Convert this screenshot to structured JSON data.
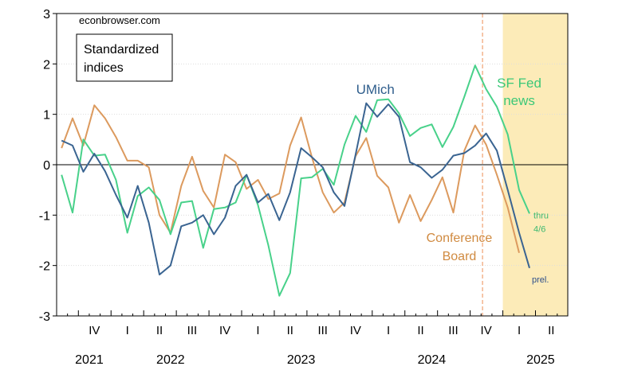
{
  "chart_data": {
    "type": "line",
    "watermark": "econbrowser.com",
    "title_box": [
      "Standardized",
      "indices"
    ],
    "ylim": [
      -3,
      3
    ],
    "y_ticks": [
      3,
      2,
      1,
      0,
      -1,
      -2,
      -3
    ],
    "x_range": [
      "2021-08",
      "2025-06"
    ],
    "quarter_ticks": [
      {
        "label": "IV",
        "x": "2021-11-15"
      },
      {
        "label": "I",
        "x": "2022-02-15"
      },
      {
        "label": "II",
        "x": "2022-05-15"
      },
      {
        "label": "III",
        "x": "2022-08-15"
      },
      {
        "label": "IV",
        "x": "2022-11-15"
      },
      {
        "label": "I",
        "x": "2023-02-15"
      },
      {
        "label": "II",
        "x": "2023-05-15"
      },
      {
        "label": "III",
        "x": "2023-08-15"
      },
      {
        "label": "IV",
        "x": "2023-11-15"
      },
      {
        "label": "I",
        "x": "2024-02-15"
      },
      {
        "label": "II",
        "x": "2024-05-15"
      },
      {
        "label": "III",
        "x": "2024-08-15"
      },
      {
        "label": "IV",
        "x": "2024-11-15"
      },
      {
        "label": "I",
        "x": "2025-02-15"
      },
      {
        "label": "II",
        "x": "2025-05-15"
      }
    ],
    "year_labels": [
      {
        "label": "2021",
        "x": "2021-11-01"
      },
      {
        "label": "2022",
        "x": "2022-06-15"
      },
      {
        "label": "2023",
        "x": "2023-06-15"
      },
      {
        "label": "2024",
        "x": "2024-06-15"
      },
      {
        "label": "2025",
        "x": "2025-04-15"
      }
    ],
    "zero_line": 0,
    "shaded_region": {
      "from": "2025-01-01",
      "to": "2025-06-30",
      "color": "#fcebb8"
    },
    "vertical_marker": {
      "x": "2024-11-05",
      "color": "#f0a070"
    },
    "series": [
      {
        "name": "UMich",
        "label_lines": [
          "UMich"
        ],
        "color": "#3a6491",
        "label_color": "#2e5d8c",
        "note": "prel.",
        "note_color": "#2e4f8a",
        "points": [
          [
            "2021-08",
            0.48
          ],
          [
            "2021-09",
            0.38
          ],
          [
            "2021-10",
            -0.14
          ],
          [
            "2021-11",
            0.22
          ],
          [
            "2021-12",
            -0.13
          ],
          [
            "2022-01",
            -0.6
          ],
          [
            "2022-02",
            -1.05
          ],
          [
            "2022-03",
            -0.42
          ],
          [
            "2022-04",
            -1.15
          ],
          [
            "2022-05",
            -2.18
          ],
          [
            "2022-06",
            -2.0
          ],
          [
            "2022-07",
            -1.22
          ],
          [
            "2022-08",
            -1.15
          ],
          [
            "2022-09",
            -1.0
          ],
          [
            "2022-10",
            -1.38
          ],
          [
            "2022-11",
            -1.05
          ],
          [
            "2022-12",
            -0.42
          ],
          [
            "2023-01",
            -0.2
          ],
          [
            "2023-02",
            -0.75
          ],
          [
            "2023-03",
            -0.58
          ],
          [
            "2023-04",
            -1.1
          ],
          [
            "2023-05",
            -0.55
          ],
          [
            "2023-06",
            0.33
          ],
          [
            "2023-07",
            0.15
          ],
          [
            "2023-08",
            -0.05
          ],
          [
            "2023-09",
            -0.55
          ],
          [
            "2023-10",
            -0.82
          ],
          [
            "2023-11",
            0.2
          ],
          [
            "2023-12",
            1.22
          ],
          [
            "2024-01",
            0.95
          ],
          [
            "2024-02",
            1.2
          ],
          [
            "2024-03",
            0.95
          ],
          [
            "2024-04",
            0.05
          ],
          [
            "2024-05",
            -0.05
          ],
          [
            "2024-06",
            -0.26
          ],
          [
            "2024-07",
            -0.1
          ],
          [
            "2024-08",
            0.18
          ],
          [
            "2024-09",
            0.23
          ],
          [
            "2024-10",
            0.38
          ],
          [
            "2024-11",
            0.62
          ],
          [
            "2024-12",
            0.28
          ],
          [
            "2025-01",
            -0.5
          ],
          [
            "2025-02",
            -1.35
          ],
          [
            "2025-03",
            -2.05
          ]
        ]
      },
      {
        "name": "Conference Board",
        "label_lines": [
          "Conference",
          "Board"
        ],
        "color": "#dc9a5e",
        "label_color": "#d08a40",
        "points": [
          [
            "2021-08",
            0.33
          ],
          [
            "2021-09",
            0.92
          ],
          [
            "2021-10",
            0.38
          ],
          [
            "2021-11",
            1.18
          ],
          [
            "2021-12",
            0.92
          ],
          [
            "2022-01",
            0.55
          ],
          [
            "2022-02",
            0.08
          ],
          [
            "2022-03",
            0.08
          ],
          [
            "2022-04",
            -0.05
          ],
          [
            "2022-05",
            -1.0
          ],
          [
            "2022-06",
            -1.35
          ],
          [
            "2022-07",
            -0.42
          ],
          [
            "2022-08",
            0.16
          ],
          [
            "2022-09",
            -0.52
          ],
          [
            "2022-10",
            -0.85
          ],
          [
            "2022-11",
            0.2
          ],
          [
            "2022-12",
            0.05
          ],
          [
            "2023-01",
            -0.48
          ],
          [
            "2023-02",
            -0.3
          ],
          [
            "2023-03",
            -0.68
          ],
          [
            "2023-04",
            -0.57
          ],
          [
            "2023-05",
            0.38
          ],
          [
            "2023-06",
            0.94
          ],
          [
            "2023-07",
            0.15
          ],
          [
            "2023-08",
            -0.55
          ],
          [
            "2023-09",
            -0.95
          ],
          [
            "2023-10",
            -0.75
          ],
          [
            "2023-11",
            0.17
          ],
          [
            "2023-12",
            0.53
          ],
          [
            "2024-01",
            -0.22
          ],
          [
            "2024-02",
            -0.45
          ],
          [
            "2024-03",
            -1.15
          ],
          [
            "2024-04",
            -0.6
          ],
          [
            "2024-05",
            -1.12
          ],
          [
            "2024-06",
            -0.7
          ],
          [
            "2024-07",
            -0.25
          ],
          [
            "2024-08",
            -0.95
          ],
          [
            "2024-09",
            0.28
          ],
          [
            "2024-10",
            0.78
          ],
          [
            "2024-11",
            0.4
          ],
          [
            "2024-12",
            -0.2
          ],
          [
            "2025-01",
            -0.85
          ],
          [
            "2025-02",
            -1.75
          ]
        ]
      },
      {
        "name": "SF Fed news",
        "label_lines": [
          "SF Fed",
          "news"
        ],
        "color": "#48d18a",
        "label_color": "#3cc878",
        "note_lines": [
          "thru",
          "4/6"
        ],
        "note_color": "#3cb870",
        "points": [
          [
            "2021-08",
            -0.2
          ],
          [
            "2021-09",
            -0.95
          ],
          [
            "2021-10",
            0.5
          ],
          [
            "2021-11",
            0.18
          ],
          [
            "2021-12",
            0.2
          ],
          [
            "2022-01",
            -0.3
          ],
          [
            "2022-02",
            -1.35
          ],
          [
            "2022-03",
            -0.62
          ],
          [
            "2022-04",
            -0.45
          ],
          [
            "2022-05",
            -0.7
          ],
          [
            "2022-06",
            -1.38
          ],
          [
            "2022-07",
            -0.75
          ],
          [
            "2022-08",
            -0.72
          ],
          [
            "2022-09",
            -1.65
          ],
          [
            "2022-10",
            -0.88
          ],
          [
            "2022-11",
            -0.85
          ],
          [
            "2022-12",
            -0.75
          ],
          [
            "2023-01",
            -0.2
          ],
          [
            "2023-02",
            -0.8
          ],
          [
            "2023-03",
            -1.6
          ],
          [
            "2023-04",
            -2.6
          ],
          [
            "2023-05",
            -2.15
          ],
          [
            "2023-06",
            -0.27
          ],
          [
            "2023-07",
            -0.25
          ],
          [
            "2023-08",
            -0.08
          ],
          [
            "2023-09",
            -0.4
          ],
          [
            "2023-10",
            0.4
          ],
          [
            "2023-11",
            0.97
          ],
          [
            "2023-12",
            0.65
          ],
          [
            "2024-01",
            1.28
          ],
          [
            "2024-02",
            1.3
          ],
          [
            "2024-03",
            1.02
          ],
          [
            "2024-04",
            0.57
          ],
          [
            "2024-05",
            0.73
          ],
          [
            "2024-06",
            0.8
          ],
          [
            "2024-07",
            0.35
          ],
          [
            "2024-08",
            0.75
          ],
          [
            "2024-09",
            1.35
          ],
          [
            "2024-10",
            1.97
          ],
          [
            "2024-11",
            1.5
          ],
          [
            "2024-12",
            1.15
          ],
          [
            "2025-01",
            0.6
          ],
          [
            "2025-02",
            -0.5
          ],
          [
            "2025-03",
            -0.97
          ]
        ]
      }
    ]
  }
}
